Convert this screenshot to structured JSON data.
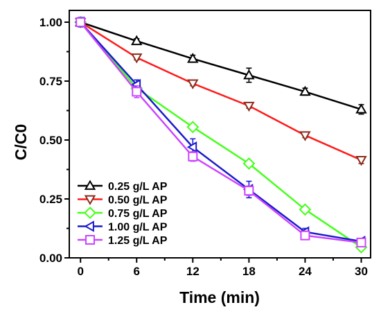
{
  "chart_data": {
    "type": "line",
    "title": "",
    "xlabel": "Time (min)",
    "ylabel": "C/C0",
    "x": [
      0,
      6,
      12,
      18,
      24,
      30
    ],
    "xlim": [
      -1.2,
      31
    ],
    "ylim": [
      0.0,
      1.05
    ],
    "xticks": [
      "0",
      "6",
      "12",
      "18",
      "24",
      "30"
    ],
    "yticks": [
      "0.00",
      "0.25",
      "0.50",
      "0.75",
      "1.00"
    ],
    "grid": false,
    "legend_position": "bottom-left",
    "series": [
      {
        "name": "0.25 g/L AP",
        "values": [
          1.0,
          0.92,
          0.845,
          0.775,
          0.705,
          0.63
        ],
        "errors": [
          0.01,
          0.01,
          0.015,
          0.03,
          0.015,
          0.02
        ],
        "color": "#000000",
        "marker": "triangle-up"
      },
      {
        "name": "0.50 g/L AP",
        "values": [
          1.0,
          0.85,
          0.74,
          0.645,
          0.52,
          0.415
        ],
        "errors": [
          0.01,
          0.01,
          0.01,
          0.01,
          0.01,
          0.015
        ],
        "color": "#ff1a1a",
        "marker_color": "#8b2a1a",
        "marker": "triangle-down"
      },
      {
        "name": "0.75 g/L AP",
        "values": [
          1.0,
          0.72,
          0.555,
          0.4,
          0.205,
          0.045
        ],
        "errors": [
          0.01,
          0.01,
          0.01,
          0.01,
          0.01,
          0.01
        ],
        "color": "#44ff1a",
        "marker": "diamond"
      },
      {
        "name": "1.00 g/L AP",
        "values": [
          1.0,
          0.735,
          0.47,
          0.29,
          0.11,
          0.07
        ],
        "errors": [
          0.02,
          0.02,
          0.035,
          0.035,
          0.015,
          0.01
        ],
        "color": "#1a1acc",
        "marker": "triangle-left"
      },
      {
        "name": "1.25 g/L AP",
        "values": [
          1.0,
          0.705,
          0.43,
          0.285,
          0.095,
          0.065
        ],
        "errors": [
          0.01,
          0.025,
          0.02,
          0.02,
          0.01,
          0.01
        ],
        "color": "#cc44ff",
        "marker": "square"
      }
    ]
  }
}
